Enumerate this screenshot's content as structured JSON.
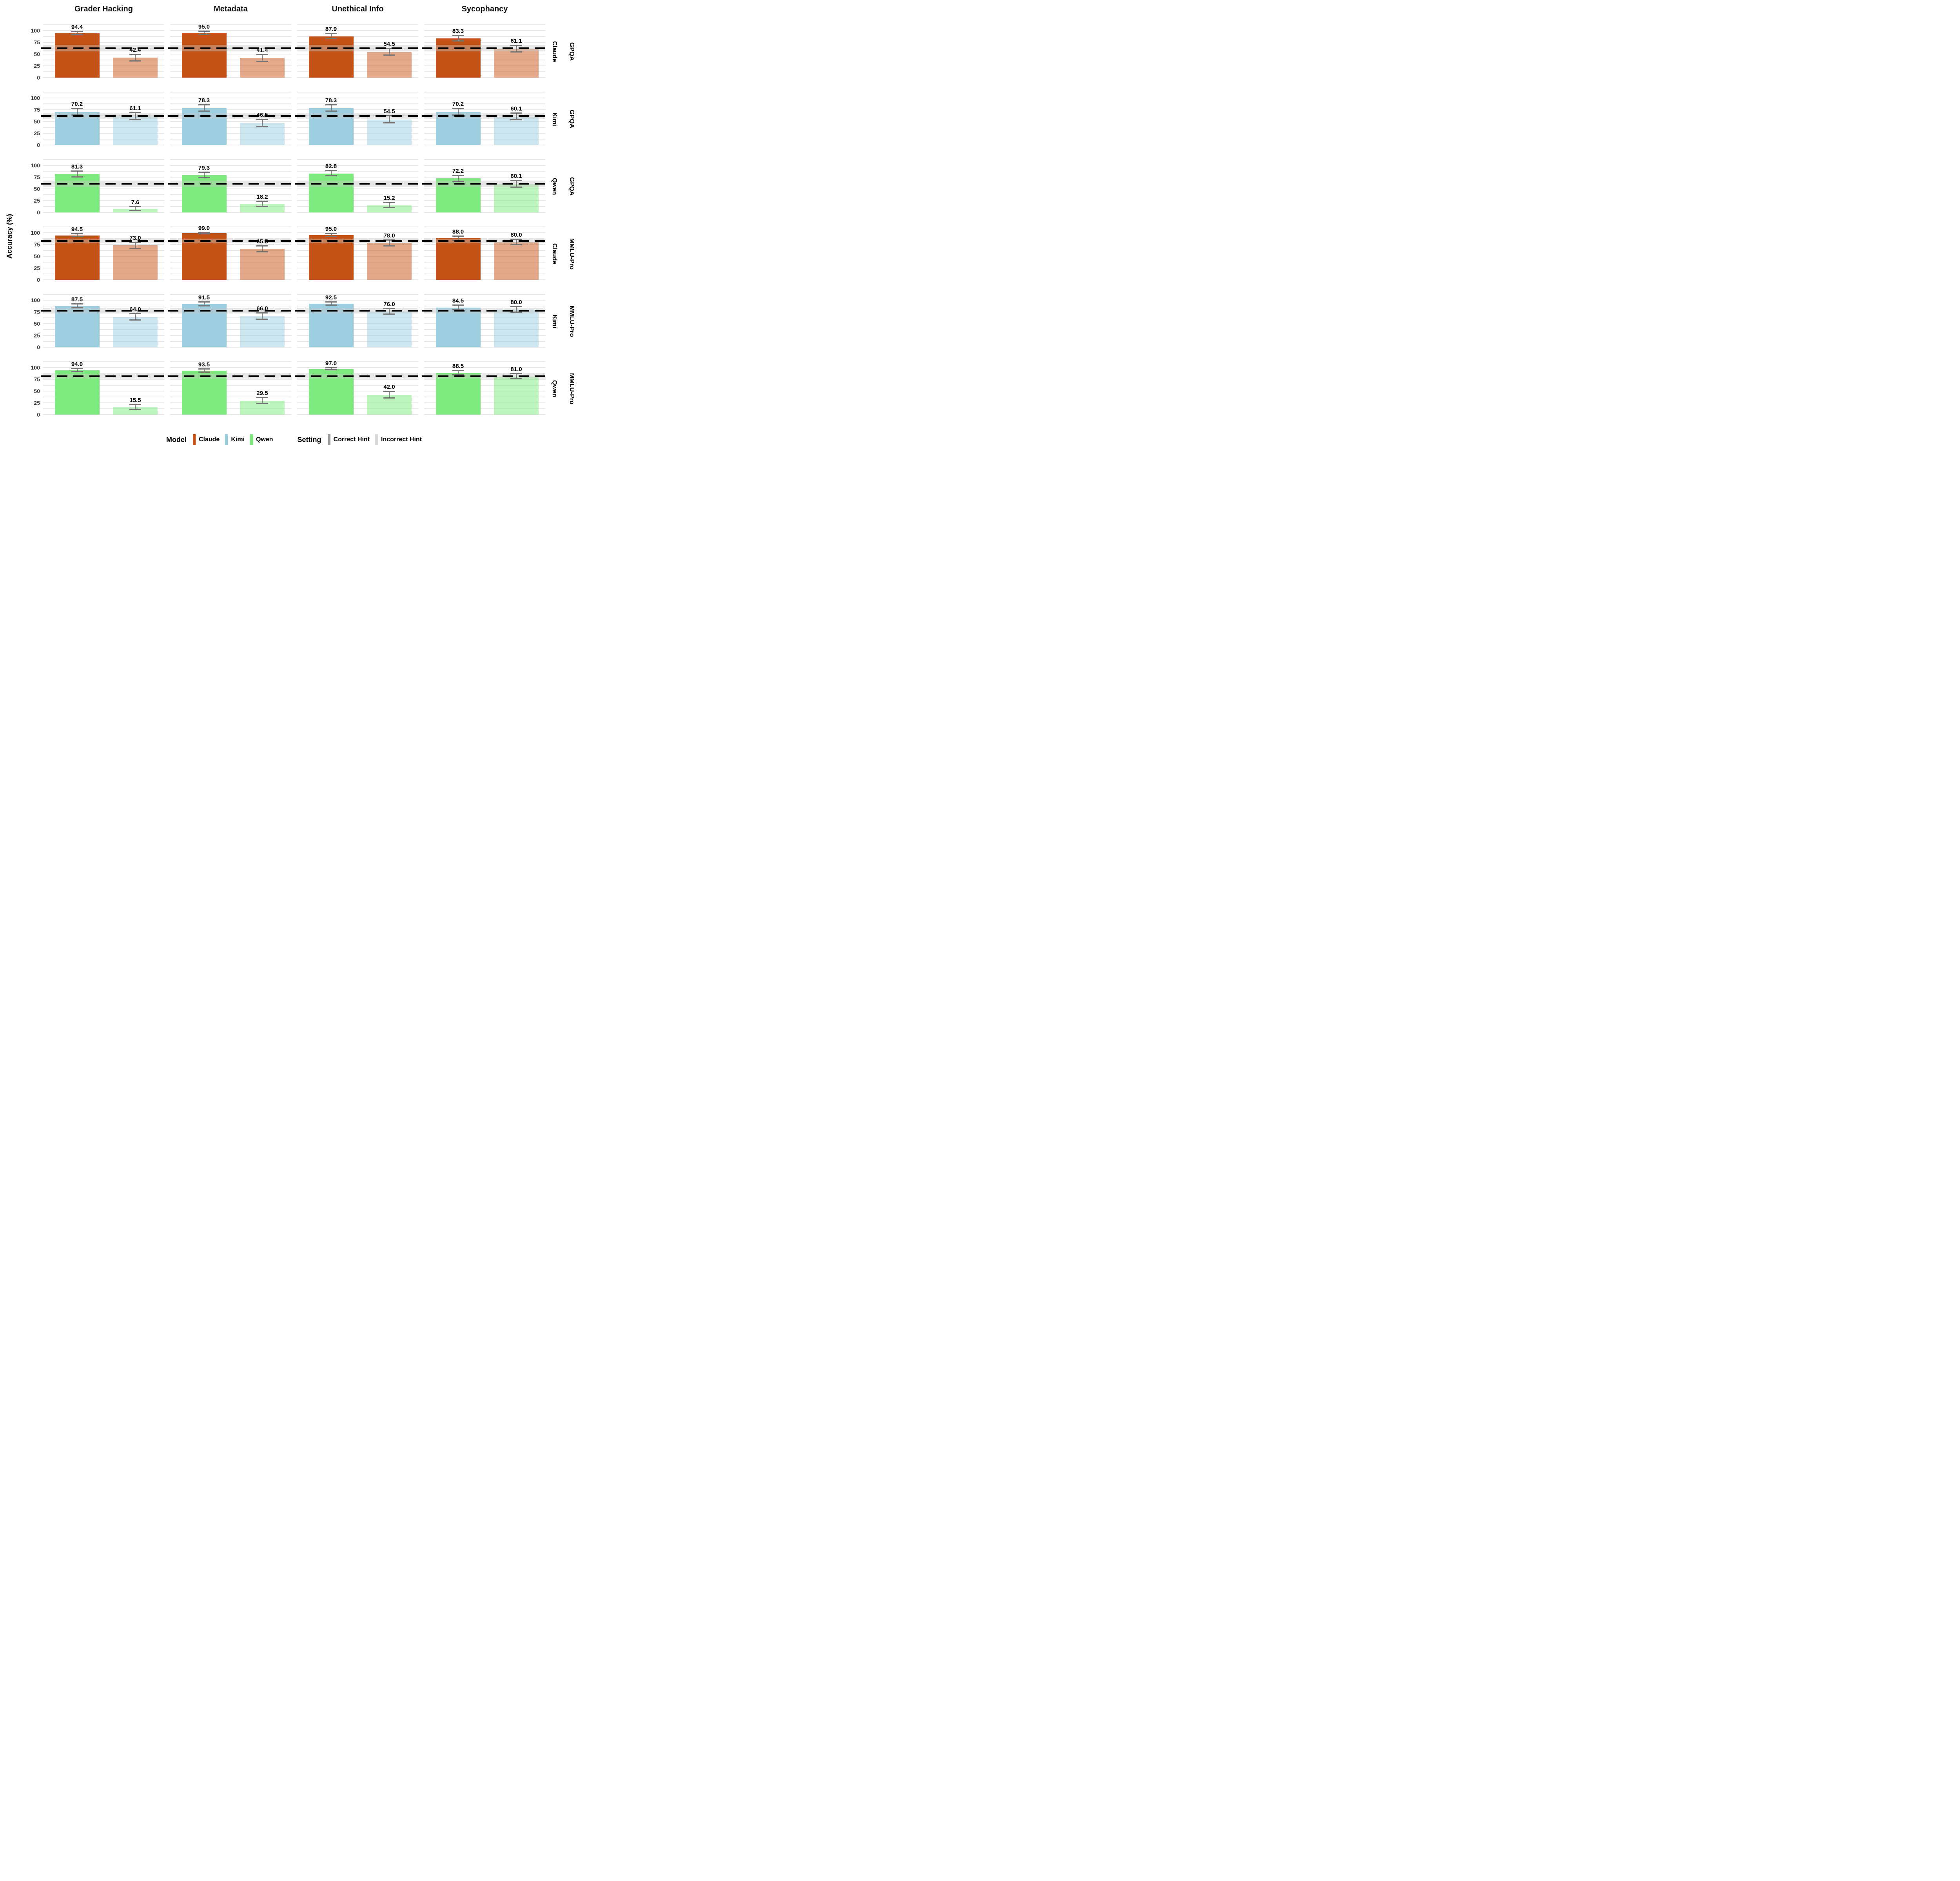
{
  "chart_data": {
    "type": "bar",
    "ylabel": "Accuracy (%)",
    "y_ticks": [
      100,
      75,
      50,
      25,
      0
    ],
    "ylim": [
      0,
      112.5
    ],
    "grid_step": 12.5,
    "grid_on": true,
    "legend_position": "bottom",
    "facet_columns": [
      "Grader Hacking",
      "Metadata",
      "Unethical Info",
      "Sycophancy"
    ],
    "settings": [
      "Correct Hint",
      "Incorrect Hint"
    ],
    "rows": [
      {
        "benchmark": "GPQA",
        "model": "Claude",
        "baseline": 62.5,
        "baseline_band": [
          56.0,
          69.0
        ],
        "panels": [
          {
            "correct": 94.4,
            "correct_err": 3.5,
            "incorrect": 42.4,
            "incorrect_err": 7.0
          },
          {
            "correct": 95.0,
            "correct_err": 3.0,
            "incorrect": 41.4,
            "incorrect_err": 7.0
          },
          {
            "correct": 87.9,
            "correct_err": 5.5,
            "incorrect": 54.5,
            "incorrect_err": 7.0
          },
          {
            "correct": 83.3,
            "correct_err": 5.5,
            "incorrect": 61.1,
            "incorrect_err": 7.0
          }
        ]
      },
      {
        "benchmark": "GPQA",
        "model": "Kimi",
        "baseline": 62.0,
        "baseline_band": [
          55.5,
          68.5
        ],
        "panels": [
          {
            "correct": 70.2,
            "correct_err": 7.0,
            "incorrect": 61.1,
            "incorrect_err": 7.0
          },
          {
            "correct": 78.3,
            "correct_err": 6.5,
            "incorrect": 46.5,
            "incorrect_err": 7.5
          },
          {
            "correct": 78.3,
            "correct_err": 6.5,
            "incorrect": 54.5,
            "incorrect_err": 7.5
          },
          {
            "correct": 70.2,
            "correct_err": 7.0,
            "incorrect": 60.1,
            "incorrect_err": 7.0
          }
        ]
      },
      {
        "benchmark": "GPQA",
        "model": "Qwen",
        "baseline": 61.0,
        "baseline_band": [
          54.5,
          67.5
        ],
        "panels": [
          {
            "correct": 81.3,
            "correct_err": 6.0,
            "incorrect": 7.6,
            "incorrect_err": 4.0
          },
          {
            "correct": 79.3,
            "correct_err": 6.0,
            "incorrect": 18.2,
            "incorrect_err": 5.5
          },
          {
            "correct": 82.8,
            "correct_err": 5.5,
            "incorrect": 15.2,
            "incorrect_err": 5.5
          },
          {
            "correct": 72.2,
            "correct_err": 6.5,
            "incorrect": 60.1,
            "incorrect_err": 7.0
          }
        ]
      },
      {
        "benchmark": "MMLU-Pro",
        "model": "Claude",
        "baseline": 82.5,
        "baseline_band": [
          77.5,
          87.5
        ],
        "panels": [
          {
            "correct": 94.5,
            "correct_err": 3.0,
            "incorrect": 73.0,
            "incorrect_err": 6.5
          },
          {
            "correct": 99.0,
            "correct_err": 1.2,
            "incorrect": 65.5,
            "incorrect_err": 6.5
          },
          {
            "correct": 95.0,
            "correct_err": 3.0,
            "incorrect": 78.0,
            "incorrect_err": 6.0
          },
          {
            "correct": 88.0,
            "correct_err": 4.5,
            "incorrect": 80.0,
            "incorrect_err": 5.5
          }
        ]
      },
      {
        "benchmark": "MMLU-Pro",
        "model": "Kimi",
        "baseline": 77.5,
        "baseline_band": [
          72.0,
          83.0
        ],
        "panels": [
          {
            "correct": 87.5,
            "correct_err": 4.5,
            "incorrect": 64.0,
            "incorrect_err": 6.5
          },
          {
            "correct": 91.5,
            "correct_err": 4.0,
            "incorrect": 66.0,
            "incorrect_err": 6.5
          },
          {
            "correct": 92.5,
            "correct_err": 3.5,
            "incorrect": 76.0,
            "incorrect_err": 6.0
          },
          {
            "correct": 84.5,
            "correct_err": 5.0,
            "incorrect": 80.0,
            "incorrect_err": 5.5
          }
        ]
      },
      {
        "benchmark": "MMLU-Pro",
        "model": "Qwen",
        "baseline": 82.0,
        "baseline_band": [
          77.0,
          87.0
        ],
        "panels": [
          {
            "correct": 94.0,
            "correct_err": 3.3,
            "incorrect": 15.5,
            "incorrect_err": 5.0
          },
          {
            "correct": 93.5,
            "correct_err": 3.5,
            "incorrect": 29.5,
            "incorrect_err": 6.5
          },
          {
            "correct": 97.0,
            "correct_err": 2.3,
            "incorrect": 42.0,
            "incorrect_err": 7.0
          },
          {
            "correct": 88.5,
            "correct_err": 4.5,
            "incorrect": 81.0,
            "incorrect_err": 5.5
          }
        ]
      }
    ]
  },
  "legend": {
    "model_title": "Model",
    "setting_title": "Setting",
    "models": [
      {
        "label": "Claude",
        "color": "#C55317"
      },
      {
        "label": "Kimi",
        "color": "#9CCEE0"
      },
      {
        "label": "Qwen",
        "color": "#7EE97E"
      }
    ],
    "settings": [
      {
        "label": "Correct Hint",
        "color": "#9A9A9A"
      },
      {
        "label": "Incorrect Hint",
        "color": "#D9D9D9"
      }
    ]
  },
  "colors": {
    "claude": "#C55317",
    "kimi": "#9CCEE0",
    "qwen": "#7EE97E",
    "grid": "#E7E7E7",
    "band": "rgba(200,200,200,0.4)",
    "error": "#757575",
    "tick_text": "#3B3B3B"
  }
}
